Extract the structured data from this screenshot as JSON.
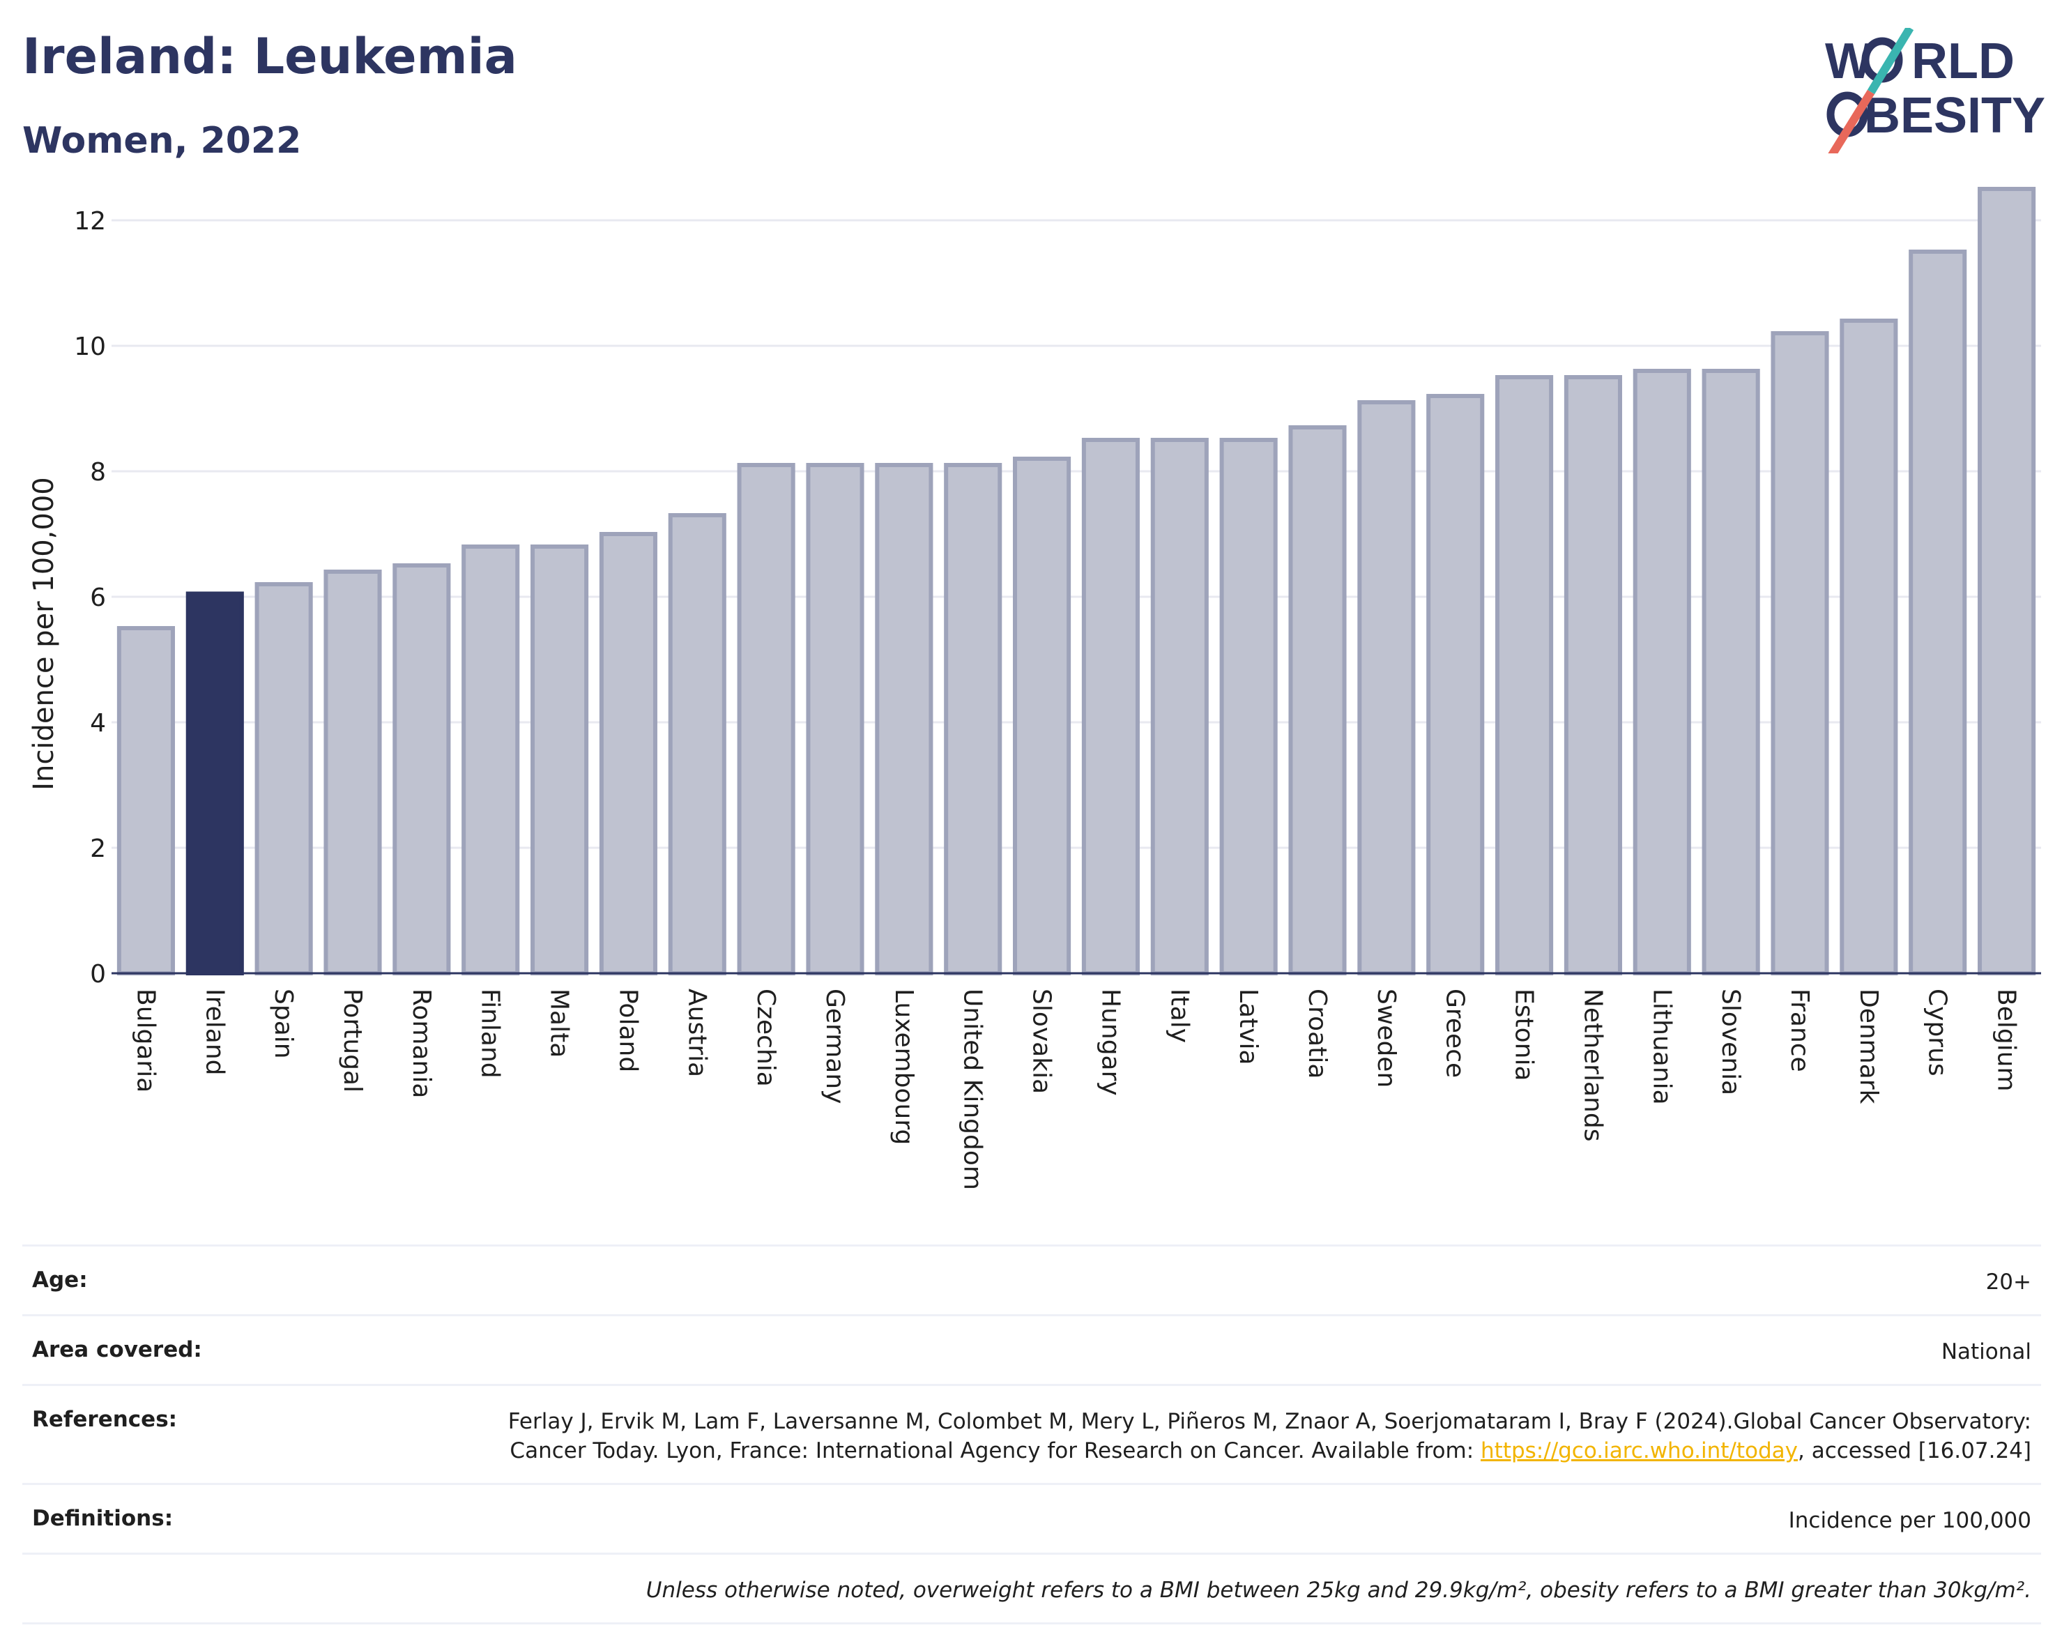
{
  "header": {
    "title": "Ireland: Leukemia",
    "subtitle": "Women, 2022"
  },
  "logo": {
    "line1_a": "W",
    "line1_b": "RLD",
    "line2_a": "O",
    "line2_b": "BESITY",
    "colors": {
      "navy": "#2d3561",
      "teal": "#3ab5b0",
      "coral": "#e8685a"
    }
  },
  "chart_data": {
    "type": "bar",
    "ylabel": "Incidence per 100,000",
    "xlabel": "",
    "ylim": [
      0,
      12.6
    ],
    "yticks": [
      0,
      2,
      4,
      6,
      8,
      10,
      12
    ],
    "grid": true,
    "highlight": "Ireland",
    "colors": {
      "highlight": "#2d3561",
      "bar_fill": "#bfc2d0",
      "bar_stroke": "#9ea3ba",
      "grid": "#e8e9f0"
    },
    "categories": [
      "Bulgaria",
      "Ireland",
      "Spain",
      "Portugal",
      "Romania",
      "Finland",
      "Malta",
      "Poland",
      "Austria",
      "Czechia",
      "Germany",
      "Luxembourg",
      "United Kingdom",
      "Slovakia",
      "Hungary",
      "Italy",
      "Latvia",
      "Croatia",
      "Sweden",
      "Greece",
      "Estonia",
      "Netherlands",
      "Lithuania",
      "Slovenia",
      "France",
      "Denmark",
      "Cyprus",
      "Belgium"
    ],
    "values": [
      5.5,
      6.05,
      6.2,
      6.4,
      6.5,
      6.8,
      6.8,
      7.0,
      7.3,
      8.1,
      8.1,
      8.1,
      8.1,
      8.2,
      8.5,
      8.5,
      8.5,
      8.7,
      9.1,
      9.2,
      9.5,
      9.5,
      9.6,
      9.6,
      10.2,
      10.4,
      11.5,
      12.5
    ]
  },
  "info": {
    "age_key": "Age:",
    "age_val": "20+",
    "area_key": "Area covered:",
    "area_val": "National",
    "ref_key": "References:",
    "ref_text": "Ferlay J, Ervik M, Lam F, Laversanne M, Colombet M, Mery L, Piñeros M, Znaor A, Soerjomataram I, Bray F (2024).Global Cancer Observatory: Cancer Today. Lyon, France: International Agency for Research on Cancer. Available from: ",
    "ref_link": "https://gco.iarc.who.int/today",
    "ref_tail": ", accessed [16.07.24]",
    "def_key": "Definitions:",
    "def_val": "Incidence per 100,000",
    "note": "Unless otherwise noted, overweight refers to a BMI between 25kg and 29.9kg/m², obesity refers to a BMI greater than 30kg/m²."
  }
}
